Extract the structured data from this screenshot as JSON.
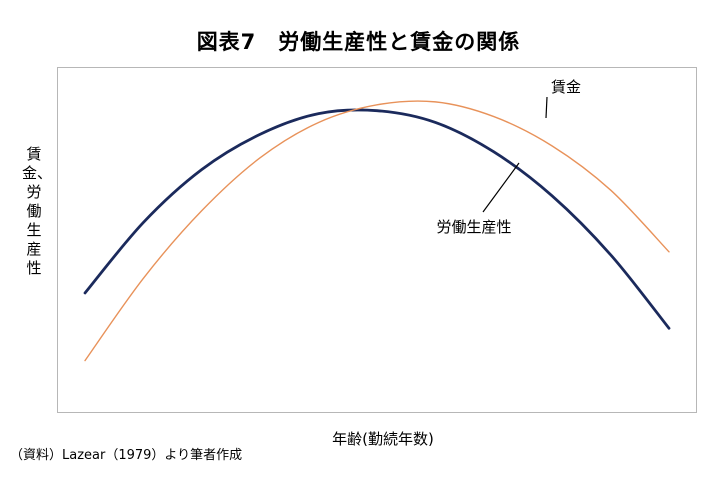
{
  "chart_data": {
    "type": "line",
    "title": "図表7　労働生産性と賃金の関係",
    "xlabel": "年齢(勤続年数)",
    "ylabel": "賃金、労働生産性",
    "xlim": [
      0,
      100
    ],
    "ylim": [
      0,
      100
    ],
    "grid": false,
    "series": [
      {
        "name": "労働生産性",
        "color": "#1b2a5c",
        "x": [
          0,
          10,
          20,
          30,
          40,
          50,
          60,
          70,
          80,
          90,
          100
        ],
        "y": [
          33,
          57,
          75,
          87,
          94,
          95,
          91,
          81,
          66,
          46,
          21
        ]
      },
      {
        "name": "賃金",
        "color": "#e8925a",
        "x": [
          0,
          10,
          20,
          30,
          40,
          50,
          60,
          70,
          80,
          90,
          100
        ],
        "y": [
          10,
          38,
          61,
          79,
          91,
          97,
          98,
          93,
          83,
          68,
          47
        ]
      }
    ]
  },
  "source": "（資料）Lazear（1979）より筆者作成"
}
